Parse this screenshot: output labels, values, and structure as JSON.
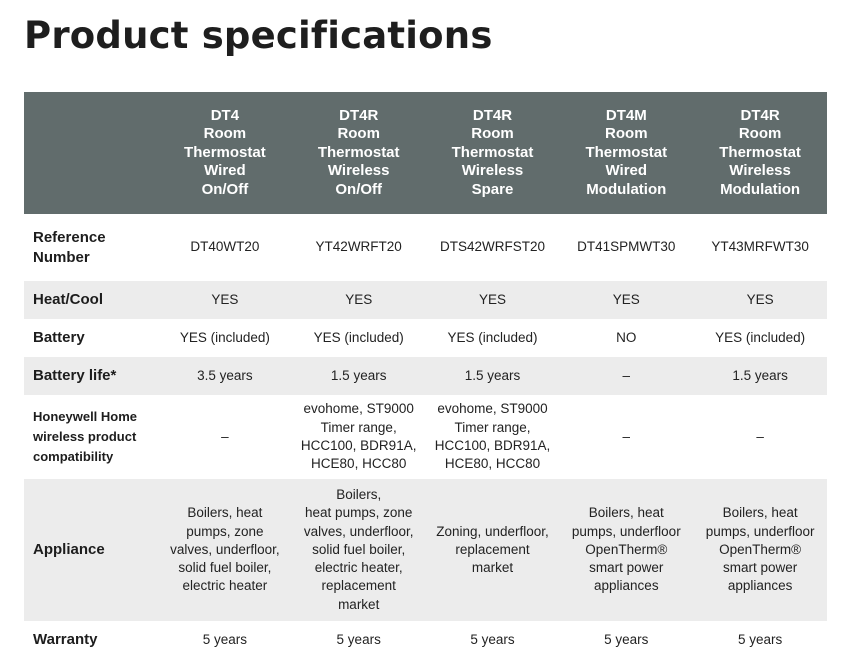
{
  "title": "Product specifications",
  "columns": [
    {
      "lines": [
        "DT4",
        "Room",
        "Thermostat",
        "Wired",
        "On/Off"
      ]
    },
    {
      "lines": [
        "DT4R",
        "Room",
        "Thermostat",
        "Wireless",
        "On/Off"
      ]
    },
    {
      "lines": [
        "DT4R",
        "Room",
        "Thermostat",
        "Wireless",
        "Spare"
      ]
    },
    {
      "lines": [
        "DT4M",
        "Room",
        "Thermostat",
        "Wired",
        "Modulation"
      ]
    },
    {
      "lines": [
        "DT4R",
        "Room",
        "Thermostat",
        "Wireless",
        "Modulation"
      ]
    }
  ],
  "rows": [
    {
      "label": [
        "Reference",
        "Number"
      ],
      "cells": [
        [
          "DT40WT20"
        ],
        [
          "YT42WRFT20"
        ],
        [
          "DTS42WRFST20"
        ],
        [
          "DT41SPMWT30"
        ],
        [
          "YT43MRFWT30"
        ]
      ]
    },
    {
      "label": [
        "Heat/Cool"
      ],
      "cells": [
        [
          "YES"
        ],
        [
          "YES"
        ],
        [
          "YES"
        ],
        [
          "YES"
        ],
        [
          "YES"
        ]
      ]
    },
    {
      "label": [
        "Battery"
      ],
      "cells": [
        [
          "YES (included)"
        ],
        [
          "YES (included)"
        ],
        [
          "YES (included)"
        ],
        [
          "NO"
        ],
        [
          "YES (included)"
        ]
      ]
    },
    {
      "label": [
        "Battery life*"
      ],
      "cells": [
        [
          "3.5 years"
        ],
        [
          "1.5 years"
        ],
        [
          "1.5 years"
        ],
        [
          "–"
        ],
        [
          "1.5 years"
        ]
      ]
    },
    {
      "label": [
        "Honeywell Home",
        "wireless product",
        "compatibility"
      ],
      "cells": [
        [
          "–"
        ],
        [
          "evohome, ST9000",
          "Timer range,",
          "HCC100, BDR91A,",
          "HCE80, HCC80"
        ],
        [
          "evohome, ST9000",
          "Timer range,",
          "HCC100, BDR91A,",
          "HCE80, HCC80"
        ],
        [
          "–"
        ],
        [
          "–"
        ]
      ]
    },
    {
      "label": [
        "Appliance"
      ],
      "cells": [
        [
          "Boilers, heat",
          "pumps, zone",
          "valves, underfloor,",
          "solid fuel boiler,",
          "electric heater"
        ],
        [
          "Boilers,",
          "heat pumps, zone",
          "valves, underfloor,",
          "solid fuel boiler,",
          "electric heater,",
          "replacement",
          "market"
        ],
        [
          "Zoning, underfloor,",
          "replacement",
          "market"
        ],
        [
          "Boilers, heat",
          "pumps, underfloor",
          "OpenTherm®",
          "smart power",
          "appliances"
        ],
        [
          "Boilers, heat",
          "pumps, underfloor",
          "OpenTherm®",
          "smart power",
          "appliances"
        ]
      ]
    },
    {
      "label": [
        "Warranty"
      ],
      "cells": [
        [
          "5 years"
        ],
        [
          "5 years"
        ],
        [
          "5 years"
        ],
        [
          "5 years"
        ],
        [
          "5 years"
        ]
      ]
    }
  ]
}
